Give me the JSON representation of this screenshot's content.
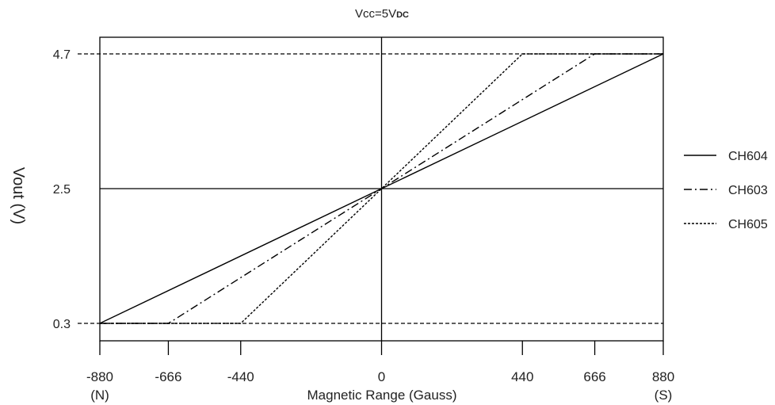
{
  "chart_data": {
    "type": "line",
    "title": "Vcc=5V",
    "title_subscript": "DC",
    "xlabel": "Magnetic Range (Gauss)",
    "ylabel": "Vout (V)",
    "xlim": [
      -880,
      880
    ],
    "ylim": [
      0.3,
      4.7
    ],
    "x_ticks": [
      -880,
      -666,
      -440,
      0,
      440,
      666,
      880
    ],
    "x_tick_labels": [
      "-880",
      "-666",
      "-440",
      "0",
      "440",
      "666",
      "880"
    ],
    "x_end_labels": {
      "left": "(N)",
      "right": "(S)"
    },
    "y_ticks": [
      0.3,
      2.5,
      4.7
    ],
    "y_tick_labels": [
      "0.3",
      "2.5",
      "4.7"
    ],
    "grid": false,
    "legend_position": "right",
    "series": [
      {
        "name": "CH604",
        "style": "solid",
        "x": [
          -880,
          0,
          880
        ],
        "y": [
          0.3,
          2.5,
          4.7
        ]
      },
      {
        "name": "CH603",
        "style": "dashdot",
        "x": [
          -880,
          -666,
          0,
          666,
          880
        ],
        "y": [
          0.3,
          0.3,
          2.5,
          4.7,
          4.7
        ]
      },
      {
        "name": "CH605",
        "style": "dotted",
        "x": [
          -880,
          -440,
          0,
          440,
          880
        ],
        "y": [
          0.3,
          0.3,
          2.5,
          4.7,
          4.7
        ]
      }
    ],
    "colors": {
      "line": "#000000",
      "text": "#222222"
    }
  }
}
